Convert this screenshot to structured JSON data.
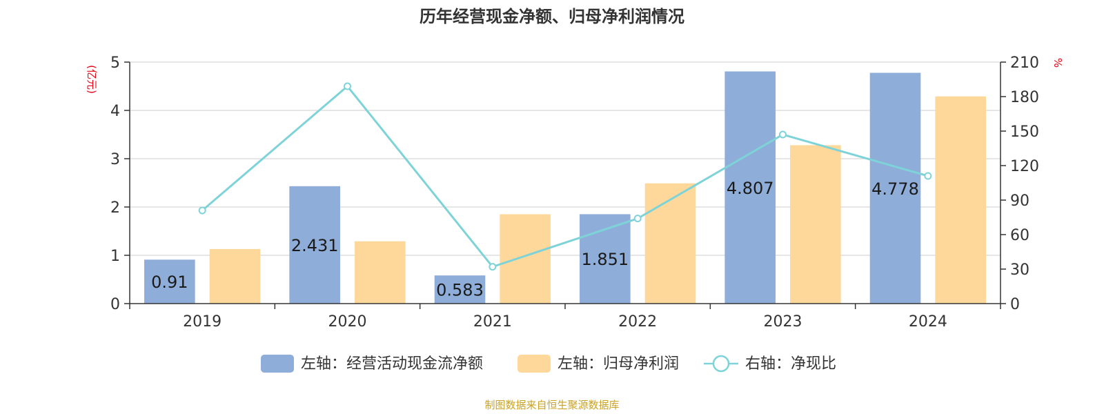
{
  "chart_data": {
    "title": "历年经营现金净额、归母净利润情况",
    "left_unit": "(亿元)",
    "right_unit": "%",
    "categories": [
      "2019",
      "2020",
      "2021",
      "2022",
      "2023",
      "2024"
    ],
    "left_axis": {
      "min": 0,
      "max": 5,
      "ticks": [
        "0",
        "1",
        "2",
        "3",
        "4",
        "5"
      ]
    },
    "right_axis": {
      "min": 0,
      "max": 210,
      "ticks": [
        "0",
        "30",
        "60",
        "90",
        "120",
        "150",
        "180",
        "210"
      ]
    },
    "series": [
      {
        "name": "左轴：经营活动现金流净额",
        "type": "bar",
        "axis": "left",
        "color": "#8eadd9",
        "values": [
          0.91,
          2.431,
          0.583,
          1.851,
          4.807,
          4.778
        ],
        "labels": [
          "0.91",
          "2.431",
          "0.583",
          "1.851",
          "4.807",
          "4.778"
        ]
      },
      {
        "name": "左轴：归母净利润",
        "type": "bar",
        "axis": "left",
        "color": "#fdd89a",
        "values": [
          1.13,
          1.29,
          1.85,
          2.49,
          3.28,
          4.29
        ]
      },
      {
        "name": "右轴：净现比",
        "type": "line",
        "axis": "right",
        "color": "#7ed3d8",
        "values": [
          81,
          189,
          32,
          74,
          147,
          111
        ]
      }
    ],
    "grid": true,
    "legend_position": "bottom",
    "source": "制图数据来自恒生聚源数据库"
  }
}
